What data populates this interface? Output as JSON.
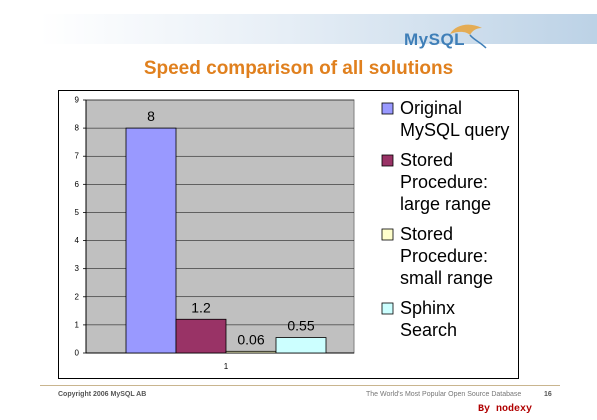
{
  "slide": {
    "logo_text": "MySQL",
    "title": "Speed comparison of all solutions",
    "footer_left": "Copyright 2006 MySQL AB",
    "footer_right": "The World's Most Popular Open Source Database",
    "page_number": "16",
    "watermark": "By nodexy"
  },
  "colors": {
    "title": "#e0801e",
    "plot_bg": "#c0c0c0"
  },
  "chart_data": {
    "type": "bar",
    "categories": [
      "1"
    ],
    "ylim": [
      0,
      9
    ],
    "yticks": [
      "0",
      "1",
      "2",
      "3",
      "4",
      "5",
      "6",
      "7",
      "8",
      "9"
    ],
    "grid": true,
    "legend_position": "right",
    "series": [
      {
        "name": "Original MySQL query",
        "legend_lines": [
          "Original",
          "MySQL query"
        ],
        "values": [
          8
        ],
        "label": "8",
        "color": "#9999ff"
      },
      {
        "name": "Stored Procedure: large range",
        "legend_lines": [
          "Stored",
          "Procedure:",
          "large range"
        ],
        "values": [
          1.2
        ],
        "label": "1.2",
        "color": "#993366"
      },
      {
        "name": "Stored Procedure: small range",
        "legend_lines": [
          "Stored",
          "Procedure:",
          "small range"
        ],
        "values": [
          0.06
        ],
        "label": "0.06",
        "color": "#ffffcc"
      },
      {
        "name": "Sphinx Search",
        "legend_lines": [
          "Sphinx",
          "Search"
        ],
        "values": [
          0.55
        ],
        "label": "0.55",
        "color": "#ccffff"
      }
    ]
  }
}
